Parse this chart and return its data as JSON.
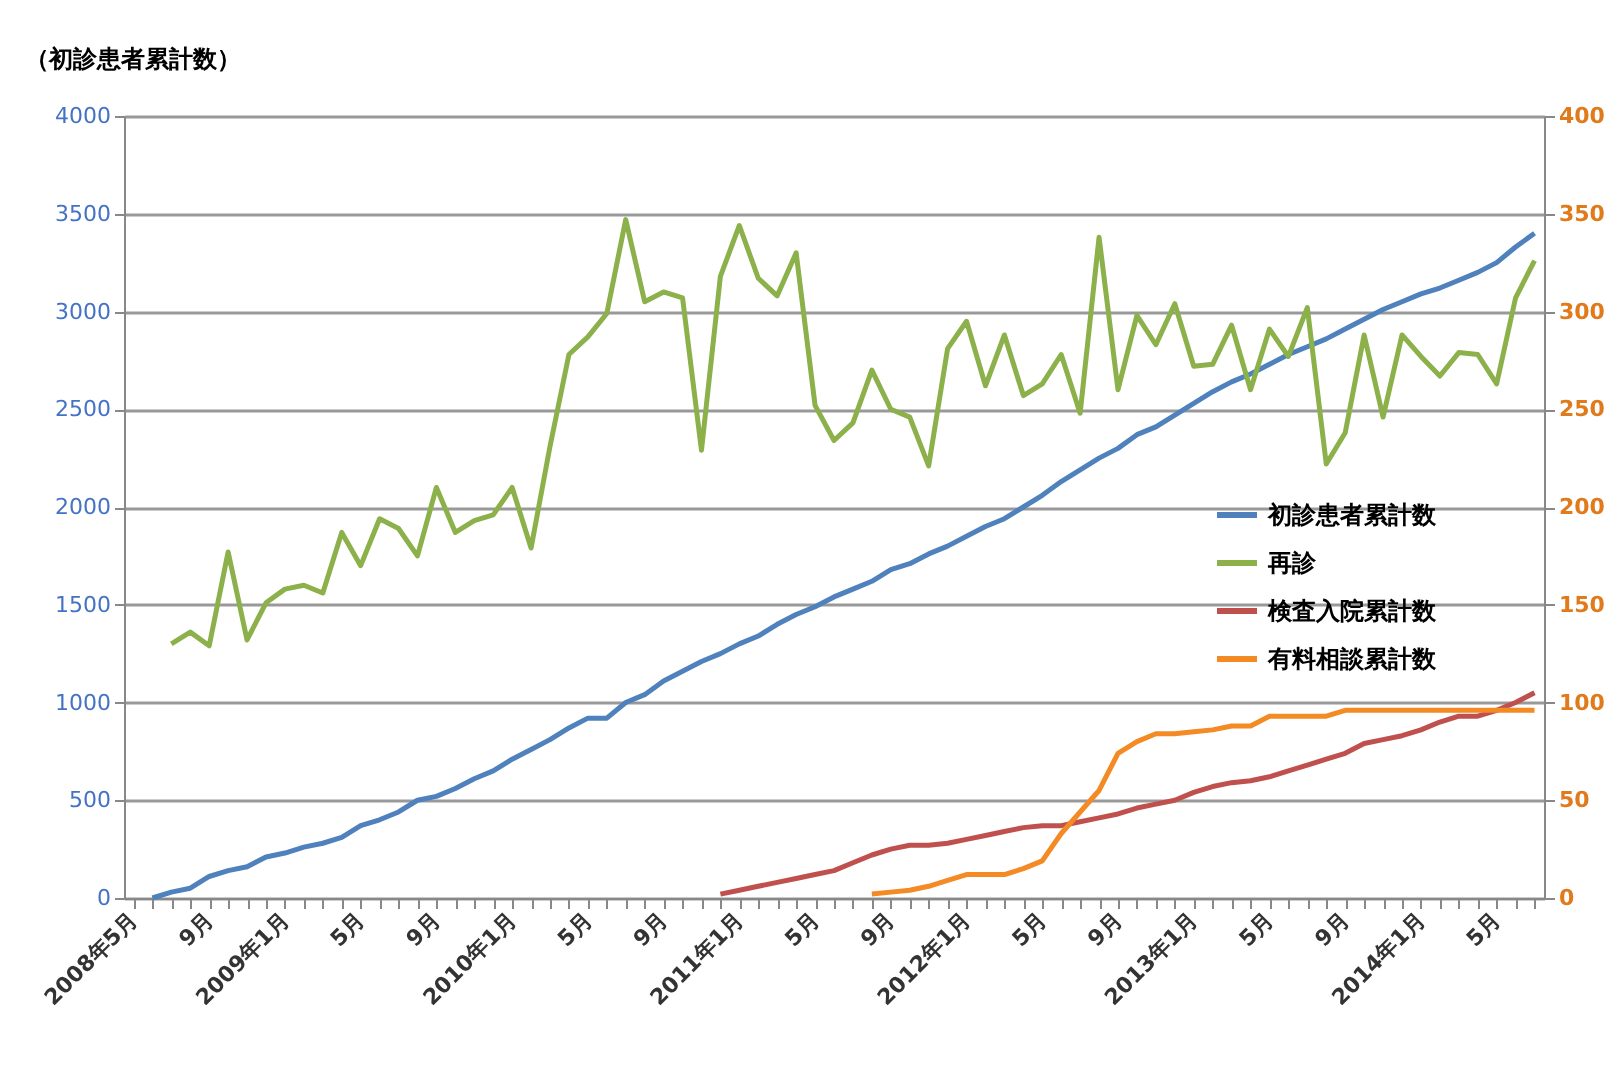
{
  "chart_data": {
    "type": "line",
    "ylabel": "（初診患者累計数）",
    "categories": [
      "2008年5月",
      null,
      null,
      null,
      "9月",
      null,
      null,
      null,
      "2009年1月",
      null,
      null,
      null,
      "5月",
      null,
      null,
      null,
      "9月",
      null,
      null,
      null,
      "2010年1月",
      null,
      null,
      null,
      "5月",
      null,
      null,
      null,
      "9月",
      null,
      null,
      null,
      "2011年1月",
      null,
      null,
      null,
      "5月",
      null,
      null,
      null,
      "9月",
      null,
      null,
      null,
      "2012年1月",
      null,
      null,
      null,
      "5月",
      null,
      null,
      null,
      "9月",
      null,
      null,
      null,
      "2013年1月",
      null,
      null,
      null,
      "5月",
      null,
      null,
      null,
      "9月",
      null,
      null,
      null,
      "2014年1月",
      null,
      null,
      null,
      "5月",
      null,
      null
    ],
    "series": [
      {
        "name": "初診患者累計数",
        "color": "#4f81bd",
        "values": [
          null,
          0,
          30,
          50,
          110,
          140,
          160,
          210,
          230,
          260,
          280,
          310,
          370,
          400,
          440,
          500,
          520,
          560,
          610,
          650,
          710,
          760,
          810,
          870,
          920,
          920,
          1000,
          1040,
          1110,
          1160,
          1210,
          1250,
          1300,
          1340,
          1400,
          1450,
          1490,
          1540,
          1580,
          1620,
          1680,
          1710,
          1760,
          1800,
          1850,
          1900,
          1940,
          2000,
          2060,
          2130,
          2190,
          2250,
          2300,
          2370,
          2410,
          2470,
          2530,
          2590,
          2640,
          2680,
          2730,
          2780,
          2820,
          2860,
          2910,
          2960,
          3010,
          3050,
          3090,
          3120,
          3160,
          3200,
          3250,
          3330,
          3400
        ]
      },
      {
        "name": "再診",
        "color": "#8cb04a",
        "axis": "y2",
        "values": [
          null,
          null,
          130,
          136,
          129,
          177,
          132,
          151,
          158,
          160,
          156,
          187,
          170,
          194,
          189,
          175,
          210,
          187,
          193,
          196,
          210,
          179,
          231,
          278,
          287,
          299,
          347,
          305,
          310,
          307,
          229,
          318,
          344,
          317,
          308,
          330,
          252,
          234,
          243,
          270,
          250,
          246,
          221,
          281,
          295,
          262,
          288,
          257,
          263,
          278,
          248,
          338,
          260,
          298,
          283,
          304,
          272,
          273,
          293,
          260,
          291,
          277,
          302,
          222,
          238,
          288,
          246,
          288,
          277,
          267,
          279,
          278,
          263,
          307,
          326
        ]
      },
      {
        "name": "検査入院累計数",
        "color": "#c0504d",
        "axis": "y2",
        "values": [
          null,
          null,
          null,
          null,
          null,
          null,
          null,
          null,
          null,
          null,
          null,
          null,
          null,
          null,
          null,
          null,
          null,
          null,
          null,
          null,
          null,
          null,
          null,
          null,
          null,
          null,
          null,
          null,
          null,
          null,
          null,
          2,
          4,
          6,
          8,
          10,
          12,
          14,
          18,
          22,
          25,
          27,
          27,
          28,
          30,
          32,
          34,
          36,
          37,
          37,
          39,
          41,
          43,
          46,
          48,
          50,
          54,
          57,
          59,
          60,
          62,
          65,
          68,
          71,
          74,
          79,
          81,
          83,
          86,
          90,
          93,
          93,
          96,
          100,
          105
        ]
      },
      {
        "name": "有料相談累計数",
        "color": "#f38a23",
        "axis": "y2",
        "values": [
          null,
          null,
          null,
          null,
          null,
          null,
          null,
          null,
          null,
          null,
          null,
          null,
          null,
          null,
          null,
          null,
          null,
          null,
          null,
          null,
          null,
          null,
          null,
          null,
          null,
          null,
          null,
          null,
          null,
          null,
          null,
          null,
          null,
          null,
          null,
          null,
          null,
          null,
          null,
          2,
          3,
          4,
          6,
          9,
          12,
          12,
          12,
          15,
          19,
          33,
          44,
          55,
          74,
          80,
          84,
          84,
          85,
          86,
          88,
          88,
          93,
          93,
          93,
          93,
          96,
          96,
          96,
          96,
          96,
          96,
          96,
          96,
          96,
          96,
          96
        ]
      }
    ],
    "ylim": [
      0,
      4000
    ],
    "yticks": [
      0,
      500,
      1000,
      1500,
      2000,
      2500,
      3000,
      3500,
      4000
    ],
    "y2lim": [
      0,
      400
    ],
    "y2ticks": [
      0,
      50,
      100,
      150,
      200,
      250,
      300,
      350,
      400
    ],
    "grid": "y",
    "legend": "right"
  }
}
